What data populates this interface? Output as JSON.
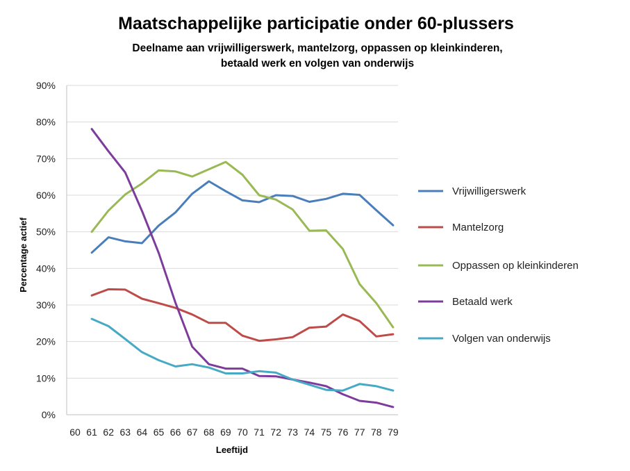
{
  "chart_data": {
    "type": "line",
    "title": "Maatschappelijke participatie onder 60-plussers",
    "subtitle_lines": [
      "Deelname aan vrijwilligerswerk, mantelzorg, oppassen op kleinkinderen,",
      "betaald werk en volgen van onderwijs"
    ],
    "xlabel": "Leeftijd",
    "ylabel": "Percentage actief",
    "x_ticks": [
      "60",
      "61",
      "62",
      "63",
      "64",
      "65",
      "66",
      "67",
      "68",
      "69",
      "70",
      "71",
      "72",
      "73",
      "74",
      "75",
      "76",
      "77",
      "78",
      "79"
    ],
    "y_ticks": [
      "0%",
      "10%",
      "20%",
      "30%",
      "40%",
      "50%",
      "60%",
      "70%",
      "80%",
      "90%"
    ],
    "ylim": [
      0,
      90
    ],
    "grid": true,
    "legend_position": "right",
    "x": [
      61,
      62,
      63,
      64,
      65,
      66,
      67,
      68,
      69,
      70,
      71,
      72,
      73,
      74,
      75,
      76,
      77,
      78,
      79
    ],
    "series": [
      {
        "name": "Vrijwilligerswerk",
        "color": "#4a7ebb",
        "values": [
          44.3,
          48.5,
          47.4,
          46.9,
          51.7,
          55.3,
          60.4,
          63.8,
          61.1,
          58.6,
          58.1,
          60.0,
          59.8,
          58.2,
          59.0,
          60.4,
          60.1,
          55.9,
          51.8
        ]
      },
      {
        "name": "Mantelzorg",
        "color": "#be4b48",
        "values": [
          32.6,
          34.3,
          34.2,
          31.7,
          30.5,
          29.2,
          27.4,
          25.1,
          25.1,
          21.6,
          20.2,
          20.6,
          21.2,
          23.8,
          24.1,
          27.4,
          25.6,
          21.4,
          22.0
        ]
      },
      {
        "name": "Oppassen op kleinkinderen",
        "color": "#98b954",
        "values": [
          50.0,
          55.8,
          60.2,
          63.2,
          66.8,
          66.5,
          65.1,
          67.1,
          69.1,
          65.6,
          60.0,
          58.8,
          56.1,
          50.3,
          50.4,
          45.3,
          35.7,
          30.5,
          23.9
        ]
      },
      {
        "name": "Betaald werk",
        "color": "#7d3c9c",
        "values": [
          78.1,
          72.0,
          66.2,
          55.7,
          44.2,
          30.6,
          18.6,
          13.8,
          12.6,
          12.6,
          10.6,
          10.5,
          9.6,
          8.8,
          7.8,
          5.6,
          3.8,
          3.3,
          2.1
        ]
      },
      {
        "name": "Volgen van onderwijs",
        "color": "#46aac5",
        "values": [
          26.2,
          24.2,
          20.7,
          17.1,
          14.9,
          13.2,
          13.8,
          12.9,
          11.3,
          11.3,
          11.9,
          11.5,
          9.6,
          8.2,
          6.8,
          6.6,
          8.4,
          7.8,
          6.6
        ]
      }
    ]
  }
}
